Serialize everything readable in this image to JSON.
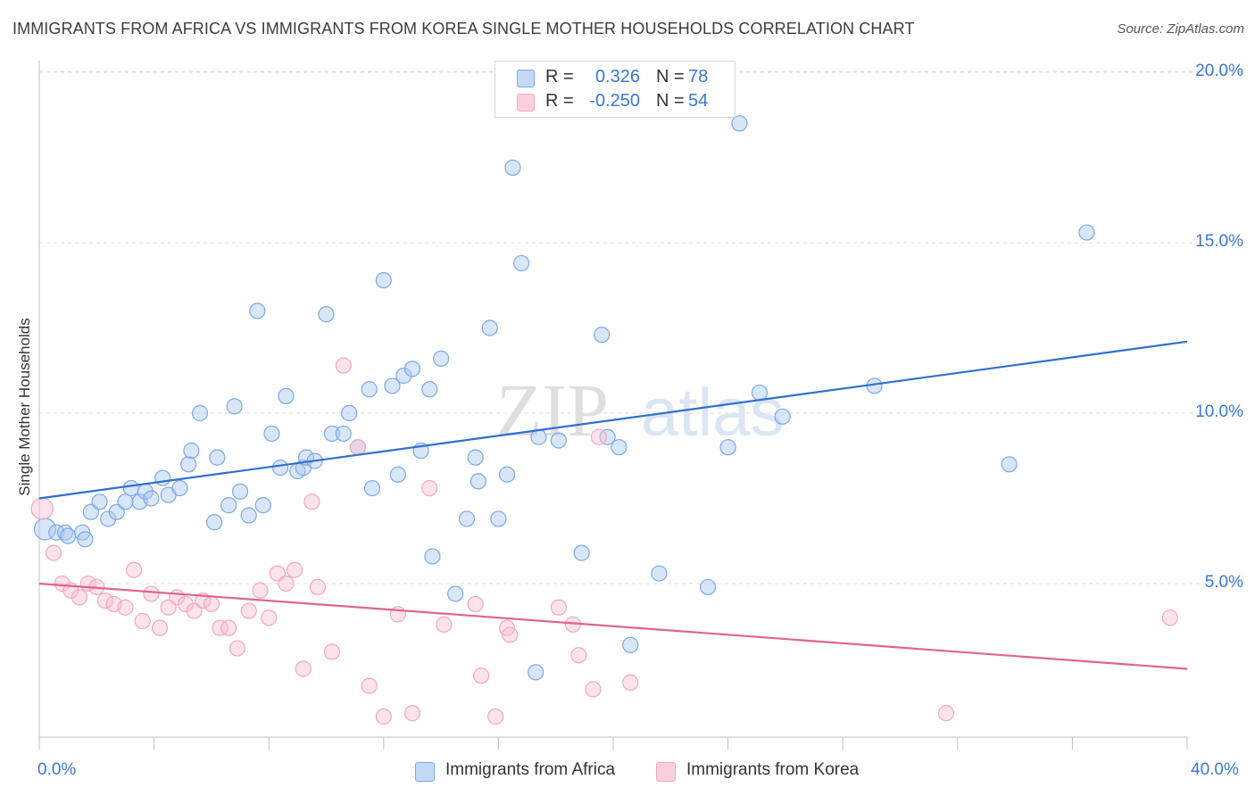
{
  "chart_data": {
    "type": "scatter",
    "title": "IMMIGRANTS FROM AFRICA VS IMMIGRANTS FROM KOREA SINGLE MOTHER HOUSEHOLDS CORRELATION CHART",
    "source": "Source: ZipAtlas.com",
    "ylabel": "Single Mother Households",
    "xlim": [
      0,
      40
    ],
    "ylim": [
      0,
      20
    ],
    "x_tick_labels": [
      "0.0%",
      "40.0%"
    ],
    "y_ticks": [
      {
        "value": 5,
        "label": "5.0%"
      },
      {
        "value": 10,
        "label": "10.0%"
      },
      {
        "value": 15,
        "label": "15.0%"
      },
      {
        "value": 20,
        "label": "20.0%"
      }
    ],
    "grid": true,
    "watermark": "ZIPatlas",
    "legend": {
      "placement": "top-center",
      "rows": [
        {
          "r_label": "R =",
          "r_value": "0.326",
          "n_label": "N =",
          "n_value": "78"
        },
        {
          "r_label": "R =",
          "r_value": "-0.250",
          "n_label": "N =",
          "n_value": "54"
        }
      ]
    },
    "series": [
      {
        "name": "Immigrants from Africa",
        "color": "#7aa8e6",
        "line_color": "#2f6fd0",
        "trend": {
          "x": [
            0,
            40
          ],
          "y": [
            7.5,
            12.1
          ]
        },
        "points": [
          [
            0.2,
            6.6
          ],
          [
            0.6,
            6.5
          ],
          [
            0.9,
            6.5
          ],
          [
            1.0,
            6.4
          ],
          [
            1.5,
            6.5
          ],
          [
            1.6,
            6.3
          ],
          [
            1.8,
            7.1
          ],
          [
            2.1,
            7.4
          ],
          [
            2.4,
            6.9
          ],
          [
            2.7,
            7.1
          ],
          [
            3.0,
            7.4
          ],
          [
            3.2,
            7.8
          ],
          [
            3.5,
            7.4
          ],
          [
            3.7,
            7.7
          ],
          [
            3.9,
            7.5
          ],
          [
            4.3,
            8.1
          ],
          [
            4.5,
            7.6
          ],
          [
            4.9,
            7.8
          ],
          [
            5.2,
            8.5
          ],
          [
            5.3,
            8.9
          ],
          [
            5.6,
            10.0
          ],
          [
            6.1,
            6.8
          ],
          [
            6.2,
            8.7
          ],
          [
            6.6,
            7.3
          ],
          [
            6.8,
            10.2
          ],
          [
            7.0,
            7.7
          ],
          [
            7.3,
            7.0
          ],
          [
            7.6,
            13.0
          ],
          [
            7.8,
            7.3
          ],
          [
            8.1,
            9.4
          ],
          [
            8.4,
            8.4
          ],
          [
            8.6,
            10.5
          ],
          [
            9.0,
            8.3
          ],
          [
            9.2,
            8.4
          ],
          [
            9.3,
            8.7
          ],
          [
            9.6,
            8.6
          ],
          [
            10.0,
            12.9
          ],
          [
            10.2,
            9.4
          ],
          [
            10.6,
            9.4
          ],
          [
            10.8,
            10.0
          ],
          [
            11.1,
            9.0
          ],
          [
            11.5,
            10.7
          ],
          [
            11.6,
            7.8
          ],
          [
            12.0,
            13.9
          ],
          [
            12.3,
            10.8
          ],
          [
            12.5,
            8.2
          ],
          [
            12.7,
            11.1
          ],
          [
            13.0,
            11.3
          ],
          [
            13.3,
            8.9
          ],
          [
            13.6,
            10.7
          ],
          [
            13.7,
            5.8
          ],
          [
            14.0,
            11.6
          ],
          [
            14.5,
            4.7
          ],
          [
            14.9,
            6.9
          ],
          [
            15.2,
            8.7
          ],
          [
            15.3,
            8.0
          ],
          [
            15.7,
            12.5
          ],
          [
            16.0,
            6.9
          ],
          [
            16.3,
            8.2
          ],
          [
            16.5,
            17.2
          ],
          [
            16.8,
            14.4
          ],
          [
            17.3,
            2.4
          ],
          [
            17.4,
            9.3
          ],
          [
            18.1,
            9.2
          ],
          [
            18.9,
            5.9
          ],
          [
            19.6,
            12.3
          ],
          [
            19.8,
            9.3
          ],
          [
            20.2,
            9.0
          ],
          [
            20.6,
            3.2
          ],
          [
            21.6,
            5.3
          ],
          [
            23.3,
            4.9
          ],
          [
            24.0,
            9.0
          ],
          [
            24.4,
            18.5
          ],
          [
            25.1,
            10.6
          ],
          [
            25.9,
            9.9
          ],
          [
            29.1,
            10.8
          ],
          [
            33.8,
            8.5
          ],
          [
            36.5,
            15.3
          ]
        ]
      },
      {
        "name": "Immigrants from Korea",
        "color": "#f3a6c0",
        "line_color": "#e0648f",
        "trend": {
          "x": [
            0,
            40
          ],
          "y": [
            5.0,
            2.5
          ]
        },
        "points": [
          [
            0.1,
            7.2
          ],
          [
            0.5,
            5.9
          ],
          [
            0.8,
            5.0
          ],
          [
            1.1,
            4.8
          ],
          [
            1.4,
            4.6
          ],
          [
            1.7,
            5.0
          ],
          [
            2.0,
            4.9
          ],
          [
            2.3,
            4.5
          ],
          [
            2.6,
            4.4
          ],
          [
            3.0,
            4.3
          ],
          [
            3.3,
            5.4
          ],
          [
            3.6,
            3.9
          ],
          [
            3.9,
            4.7
          ],
          [
            4.2,
            3.7
          ],
          [
            4.5,
            4.3
          ],
          [
            4.8,
            4.6
          ],
          [
            5.1,
            4.4
          ],
          [
            5.4,
            4.2
          ],
          [
            5.7,
            4.5
          ],
          [
            6.0,
            4.4
          ],
          [
            6.3,
            3.7
          ],
          [
            6.6,
            3.7
          ],
          [
            6.9,
            3.1
          ],
          [
            7.3,
            4.2
          ],
          [
            7.7,
            4.8
          ],
          [
            8.0,
            4.0
          ],
          [
            8.3,
            5.3
          ],
          [
            8.6,
            5.0
          ],
          [
            8.9,
            5.4
          ],
          [
            9.2,
            2.5
          ],
          [
            9.5,
            7.4
          ],
          [
            9.7,
            4.9
          ],
          [
            10.2,
            3.0
          ],
          [
            10.6,
            11.4
          ],
          [
            11.1,
            9.0
          ],
          [
            11.5,
            2.0
          ],
          [
            12.0,
            1.1
          ],
          [
            12.5,
            4.1
          ],
          [
            13.0,
            1.2
          ],
          [
            13.6,
            7.8
          ],
          [
            14.1,
            3.8
          ],
          [
            15.2,
            4.4
          ],
          [
            15.4,
            2.3
          ],
          [
            15.9,
            1.1
          ],
          [
            16.3,
            3.7
          ],
          [
            16.4,
            3.5
          ],
          [
            18.1,
            4.3
          ],
          [
            18.6,
            3.8
          ],
          [
            18.8,
            2.9
          ],
          [
            19.3,
            1.9
          ],
          [
            19.5,
            9.3
          ],
          [
            20.6,
            2.1
          ],
          [
            31.6,
            1.2
          ],
          [
            39.4,
            4.0
          ]
        ]
      }
    ]
  },
  "bottom_legend": {
    "africa_label": "Immigrants from Africa",
    "korea_label": "Immigrants from Korea"
  }
}
